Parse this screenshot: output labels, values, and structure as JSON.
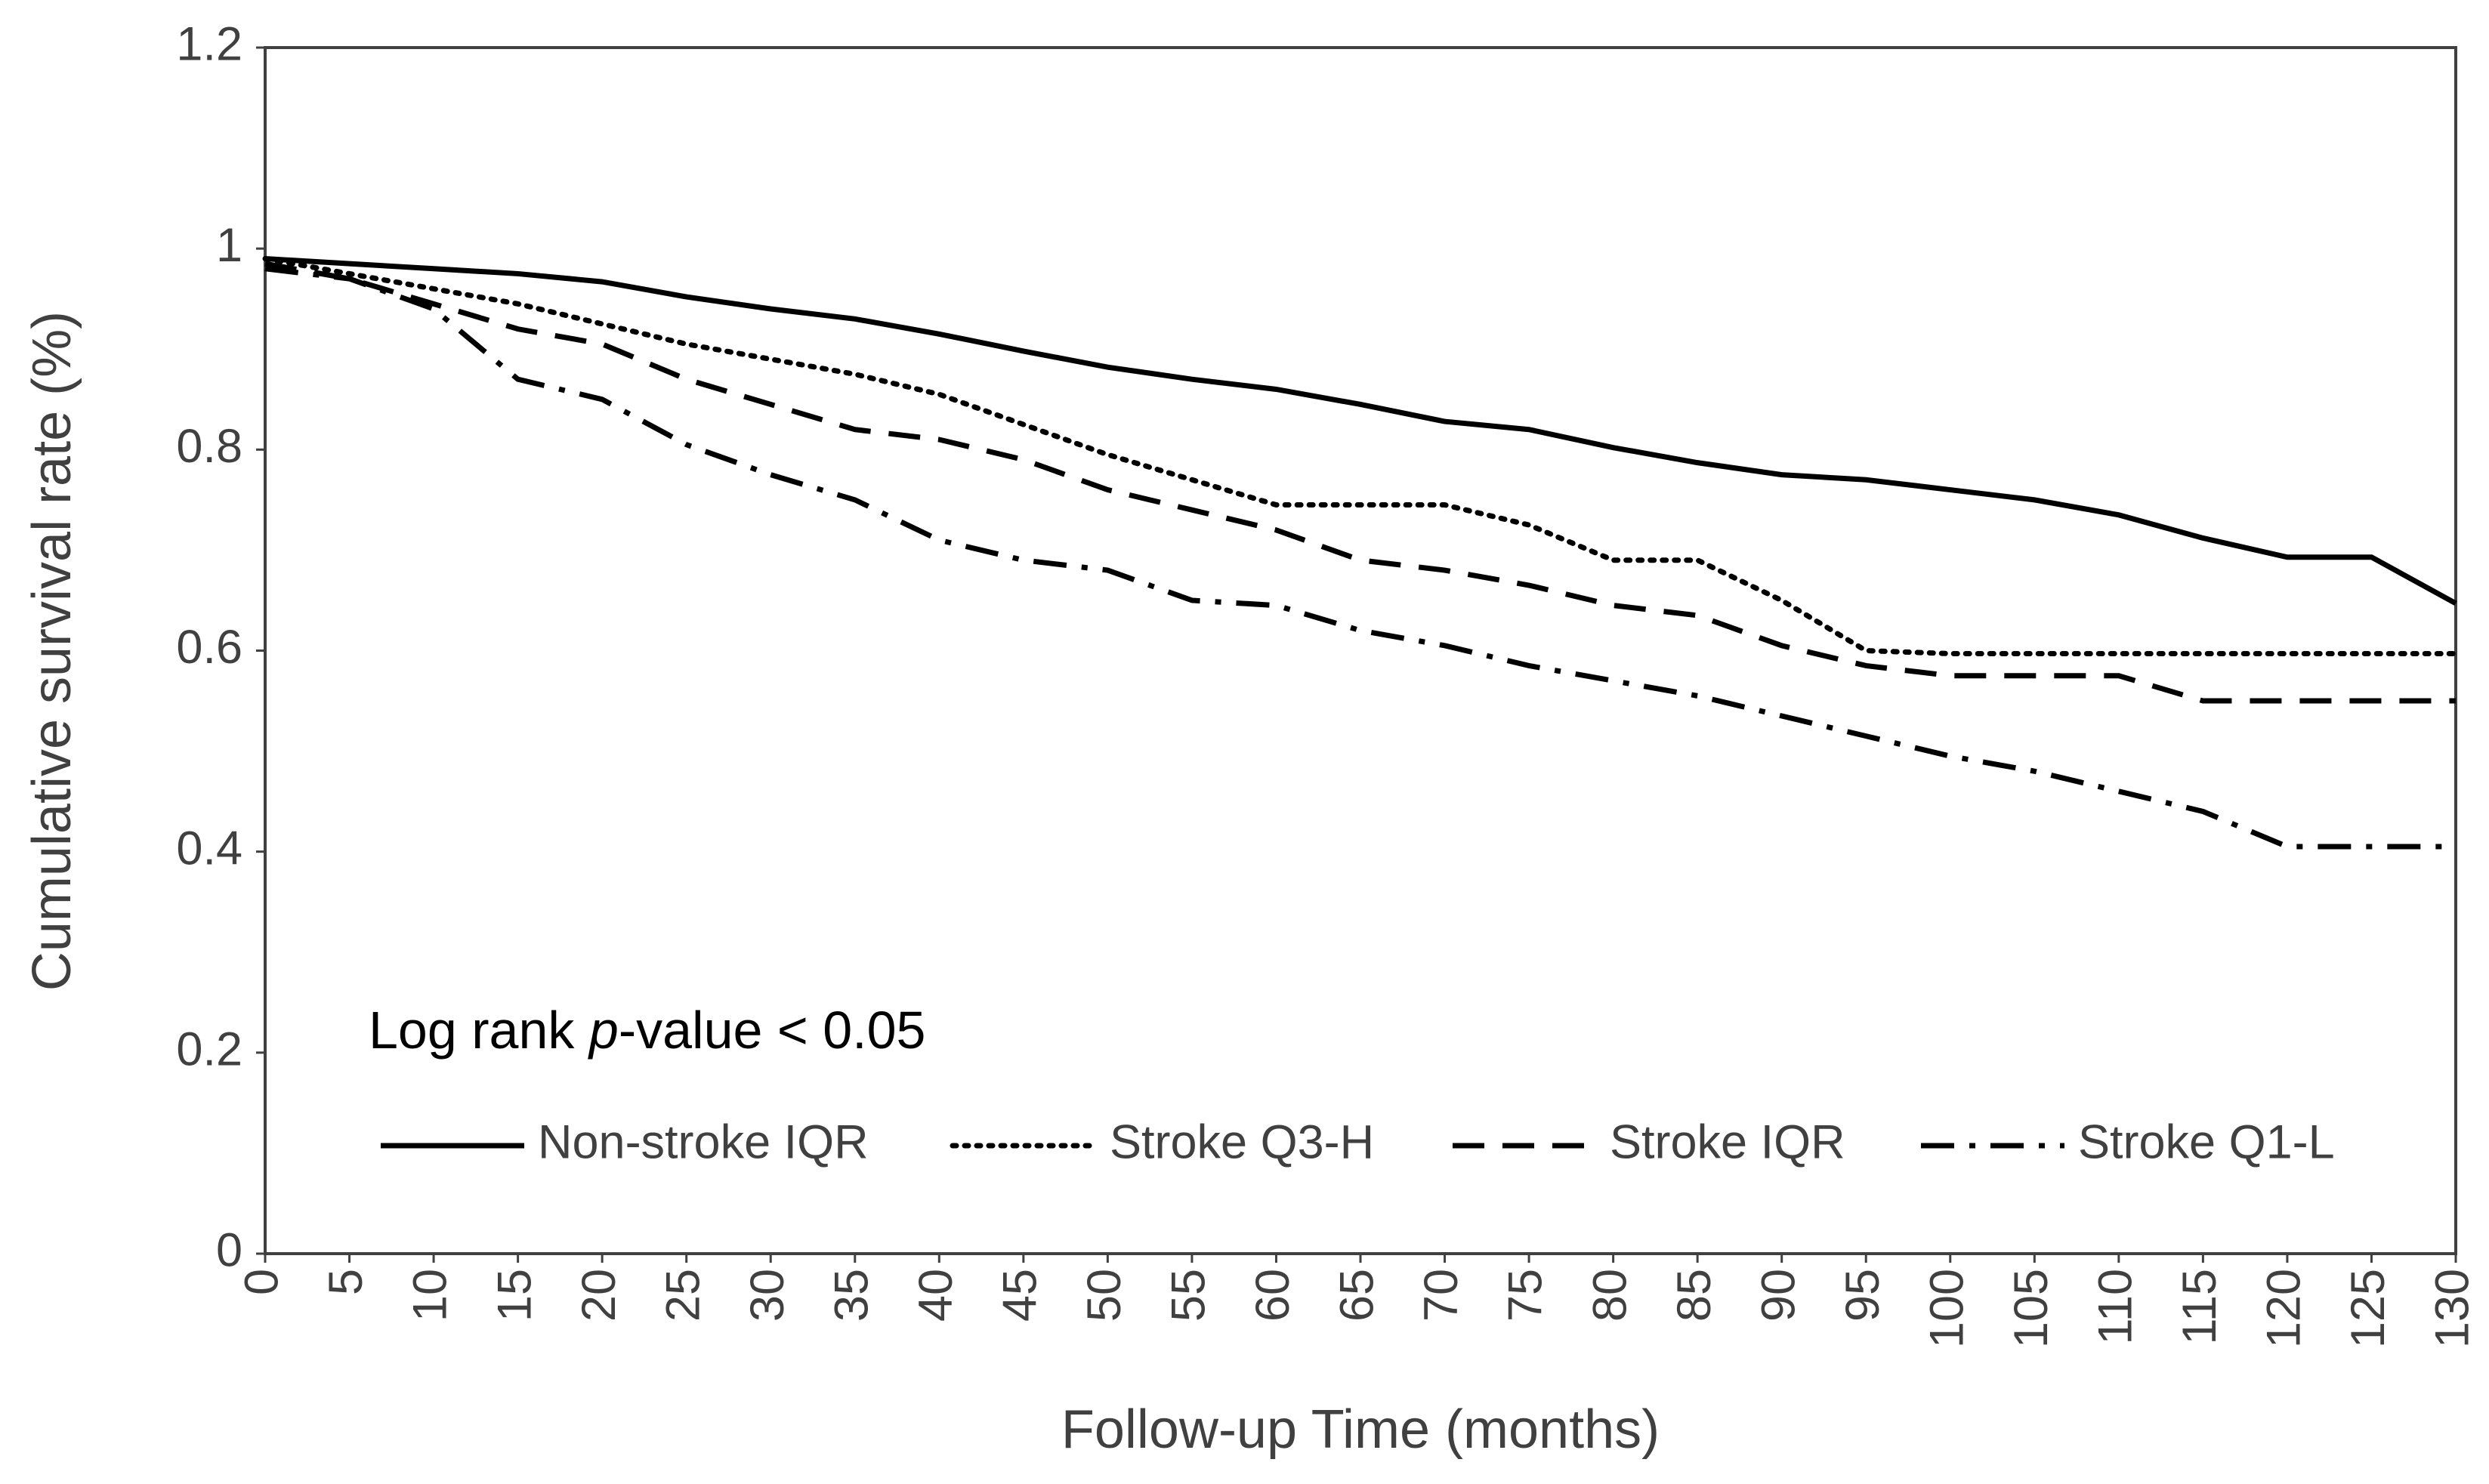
{
  "chart_data": {
    "type": "line",
    "y_label": "Cumulative survival rate (%)",
    "x_label": "Follow-up Time (months)",
    "annotation": {
      "prefix": "Log rank ",
      "italic": "p",
      "suffix": "-value < 0.05"
    },
    "x": [
      0,
      5,
      10,
      15,
      20,
      25,
      30,
      35,
      40,
      45,
      50,
      55,
      60,
      65,
      70,
      75,
      80,
      85,
      90,
      95,
      100,
      105,
      110,
      115,
      120,
      125,
      130
    ],
    "xlim": [
      0,
      130
    ],
    "xticks": [
      0,
      5,
      10,
      15,
      20,
      25,
      30,
      35,
      40,
      45,
      50,
      55,
      60,
      65,
      70,
      75,
      80,
      85,
      90,
      95,
      100,
      105,
      110,
      115,
      120,
      125,
      130
    ],
    "ylim": [
      0,
      1.2
    ],
    "yticks": [
      0,
      0.2,
      0.4,
      0.6,
      0.8,
      1,
      1.2
    ],
    "legend": "bottom-left",
    "series": [
      {
        "name": "Non-stroke IQR",
        "color": "#000000",
        "dash": "solid",
        "values": [
          0.99,
          0.985,
          0.98,
          0.975,
          0.967,
          0.952,
          0.94,
          0.93,
          0.915,
          0.898,
          0.882,
          0.87,
          0.86,
          0.845,
          0.828,
          0.82,
          0.802,
          0.787,
          0.775,
          0.77,
          0.76,
          0.75,
          0.735,
          0.712,
          0.693,
          0.693,
          0.647
        ]
      },
      {
        "name": "Stroke Q3-H",
        "color": "#000000",
        "dash": "dotted",
        "values": [
          0.99,
          0.975,
          0.96,
          0.945,
          0.925,
          0.905,
          0.89,
          0.875,
          0.855,
          0.825,
          0.795,
          0.77,
          0.745,
          0.745,
          0.745,
          0.725,
          0.69,
          0.69,
          0.65,
          0.6,
          0.597,
          0.597,
          0.597,
          0.597,
          0.597,
          0.597,
          0.597
        ]
      },
      {
        "name": "Stroke IQR",
        "color": "#000000",
        "dash": "dashed",
        "values": [
          0.985,
          0.97,
          0.945,
          0.92,
          0.905,
          0.87,
          0.845,
          0.82,
          0.81,
          0.79,
          0.76,
          0.74,
          0.72,
          0.69,
          0.68,
          0.665,
          0.645,
          0.635,
          0.605,
          0.585,
          0.575,
          0.575,
          0.575,
          0.55,
          0.55,
          0.55,
          0.55
        ]
      },
      {
        "name": "Stroke Q1-L",
        "color": "#000000",
        "dash": "dashdot",
        "values": [
          0.98,
          0.97,
          0.94,
          0.87,
          0.85,
          0.805,
          0.775,
          0.75,
          0.71,
          0.69,
          0.68,
          0.65,
          0.645,
          0.62,
          0.605,
          0.585,
          0.57,
          0.555,
          0.535,
          0.515,
          0.495,
          0.48,
          0.46,
          0.44,
          0.405,
          0.405,
          0.405
        ]
      }
    ]
  }
}
